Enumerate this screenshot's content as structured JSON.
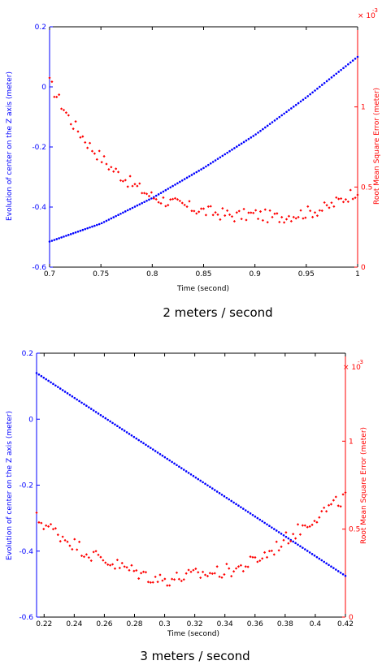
{
  "chart_data": [
    {
      "type": "scatter",
      "caption": "2 meters / second",
      "xlabel": "Time (second)",
      "ylabel_left": "Evolution of center on the Z axis (meter)",
      "ylabel_right": "Root Mean Square Error (meter)",
      "right_exponent": "× 10",
      "right_exponent_power": "-3",
      "xlim": [
        0.7,
        1.0
      ],
      "ylim_left": [
        -0.6,
        0.2
      ],
      "ylim_right": [
        0,
        1.5
      ],
      "xticks": [
        "0.7",
        "0.75",
        "0.8",
        "0.85",
        "0.9",
        "0.95",
        "1"
      ],
      "yticks_left": [
        "-0.6",
        "-0.4",
        "-0.2",
        "0",
        "0.2"
      ],
      "yticks_right": [
        "0",
        "0.5",
        "1"
      ],
      "colors": {
        "left": "#0000ff",
        "right": "#ff0000"
      },
      "series": [
        {
          "axis": "left",
          "color": "#0000ff",
          "kind": "curve",
          "x": [
            0.7,
            0.75,
            0.8,
            0.85,
            0.9,
            0.95,
            1.0
          ],
          "y": [
            -0.515,
            -0.455,
            -0.37,
            -0.27,
            -0.16,
            -0.035,
            0.1
          ]
        },
        {
          "axis": "right",
          "color": "#ff0000",
          "kind": "noisy",
          "x": [
            0.7,
            0.72,
            0.74,
            0.76,
            0.78,
            0.8,
            0.82,
            0.85,
            0.88,
            0.9,
            0.92,
            0.95,
            0.97,
            1.0
          ],
          "y": [
            1.15,
            0.92,
            0.75,
            0.62,
            0.52,
            0.44,
            0.4,
            0.35,
            0.32,
            0.33,
            0.31,
            0.34,
            0.37,
            0.48
          ]
        }
      ]
    },
    {
      "type": "scatter",
      "caption": "3 meters / second",
      "xlabel": "Time (second)",
      "ylabel_left": "Evolution of center on the Z axis (meter)",
      "ylabel_right": "Root Mean Square Error (meter)",
      "right_exponent": "× 10",
      "right_exponent_power": "-3",
      "xlim": [
        0.215,
        0.42
      ],
      "ylim_left": [
        -0.6,
        0.2
      ],
      "ylim_right": [
        0,
        1.5
      ],
      "xticks": [
        "0.22",
        "0.24",
        "0.26",
        "0.28",
        "0.3",
        "0.32",
        "0.34",
        "0.36",
        "0.38",
        "0.4",
        "0.42"
      ],
      "yticks_left": [
        "-0.6",
        "-0.4",
        "-0.2",
        "0",
        "0.2"
      ],
      "yticks_right": [
        "0",
        "0.5",
        "1"
      ],
      "colors": {
        "left": "#0000ff",
        "right": "#ff0000"
      },
      "series": [
        {
          "axis": "left",
          "color": "#0000ff",
          "kind": "curve",
          "x": [
            0.215,
            0.42
          ],
          "y": [
            0.14,
            -0.475
          ]
        },
        {
          "axis": "right",
          "color": "#ff0000",
          "kind": "noisy",
          "x": [
            0.215,
            0.23,
            0.25,
            0.27,
            0.29,
            0.3,
            0.32,
            0.34,
            0.35,
            0.36,
            0.37,
            0.38,
            0.39,
            0.4,
            0.42
          ],
          "y": [
            0.56,
            0.47,
            0.36,
            0.29,
            0.23,
            0.21,
            0.24,
            0.26,
            0.28,
            0.32,
            0.37,
            0.44,
            0.5,
            0.57,
            0.68
          ]
        }
      ]
    }
  ]
}
